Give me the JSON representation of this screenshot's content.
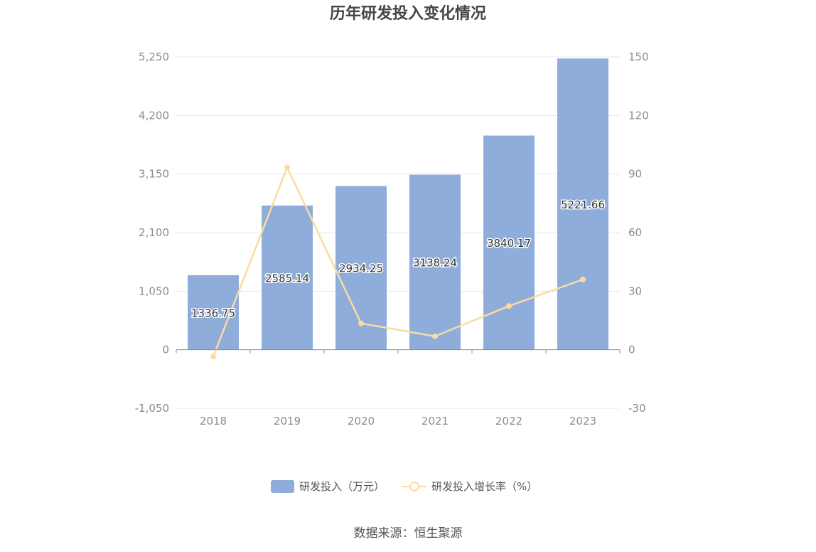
{
  "chart_data": {
    "type": "bar",
    "title": "历年研发投入变化情况",
    "categories": [
      "2018",
      "2019",
      "2020",
      "2021",
      "2022",
      "2023"
    ],
    "series": [
      {
        "name": "研发投入（万元）",
        "type": "bar",
        "axis": "left",
        "values": [
          1336.75,
          2585.14,
          2934.25,
          3138.24,
          3840.17,
          5221.66
        ],
        "color": "#8eadda"
      },
      {
        "name": "研发投入增长率（%）",
        "type": "line",
        "axis": "right",
        "values": [
          -3.5,
          93.4,
          13.5,
          6.9,
          22.4,
          36.0
        ],
        "color": "#fbdba1"
      }
    ],
    "left_axis": {
      "ticks": [
        "5,250",
        "4,200",
        "3,150",
        "2,100",
        "1,050",
        "0",
        "-1,050"
      ],
      "ylim": [
        -1050,
        5250
      ]
    },
    "right_axis": {
      "ticks": [
        "150",
        "120",
        "90",
        "60",
        "30",
        "0",
        "-30"
      ],
      "ylim": [
        -30,
        150
      ]
    },
    "grid": true,
    "legend": "bottom-center",
    "source": "数据来源：恒生聚源",
    "colors": {
      "bar": "#8eadda",
      "line": "#fbdba1",
      "grid": "#e6e8f0",
      "axis": "#8c8c8c"
    }
  }
}
